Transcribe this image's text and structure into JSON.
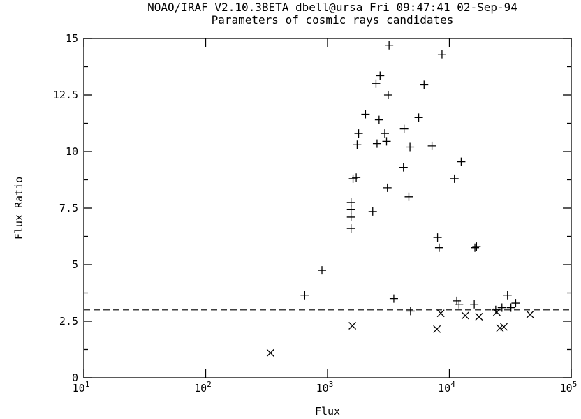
{
  "header": {
    "line1": "NOAO/IRAF V2.10.3BETA dbell@ursa Fri 09:47:41 02-Sep-94",
    "line2": "Parameters of cosmic rays candidates"
  },
  "chart_data": {
    "type": "scatter",
    "xlabel": "Flux",
    "ylabel": "Flux Ratio",
    "xscale": "log",
    "xlim": [
      10,
      100000
    ],
    "ylim": [
      0,
      15
    ],
    "x_ticks": [
      {
        "value": 10,
        "base": "10",
        "exp": "1"
      },
      {
        "value": 100,
        "base": "10",
        "exp": "2"
      },
      {
        "value": 1000,
        "base": "10",
        "exp": "3"
      },
      {
        "value": 10000,
        "base": "10",
        "exp": "4"
      },
      {
        "value": 100000,
        "base": "10",
        "exp": "5"
      }
    ],
    "y_ticks": [
      {
        "value": 0,
        "label": "0"
      },
      {
        "value": 2.5,
        "label": "2.5"
      },
      {
        "value": 5,
        "label": "5"
      },
      {
        "value": 7.5,
        "label": "7.5"
      },
      {
        "value": 10,
        "label": "10"
      },
      {
        "value": 12.5,
        "label": "12.5"
      },
      {
        "value": 15,
        "label": "15"
      }
    ],
    "threshold": 3.0,
    "series": [
      {
        "marker": "plus",
        "points": [
          [
            650,
            3.65
          ],
          [
            900,
            4.75
          ],
          [
            1560,
            6.6
          ],
          [
            1560,
            7.1
          ],
          [
            1560,
            7.45
          ],
          [
            1560,
            7.75
          ],
          [
            1620,
            8.8
          ],
          [
            1720,
            8.85
          ],
          [
            1750,
            10.3
          ],
          [
            1800,
            10.8
          ],
          [
            2050,
            11.65
          ],
          [
            2350,
            7.35
          ],
          [
            2500,
            13.0
          ],
          [
            2550,
            10.35
          ],
          [
            2650,
            11.4
          ],
          [
            2700,
            13.35
          ],
          [
            2950,
            10.8
          ],
          [
            3050,
            10.45
          ],
          [
            3100,
            8.4
          ],
          [
            3150,
            12.5
          ],
          [
            3200,
            14.7
          ],
          [
            3500,
            3.5
          ],
          [
            4200,
            9.3
          ],
          [
            4250,
            11.0
          ],
          [
            4650,
            8.0
          ],
          [
            4750,
            10.2
          ],
          [
            4800,
            2.95
          ],
          [
            5600,
            11.5
          ],
          [
            6200,
            12.95
          ],
          [
            7200,
            10.25
          ],
          [
            8000,
            6.2
          ],
          [
            8250,
            5.75
          ],
          [
            8700,
            14.3
          ],
          [
            11000,
            8.8
          ],
          [
            11500,
            3.4
          ],
          [
            12000,
            3.25
          ],
          [
            12500,
            9.55
          ],
          [
            16000,
            3.25
          ],
          [
            16200,
            5.75
          ],
          [
            16700,
            5.8
          ],
          [
            24000,
            3.0
          ],
          [
            27000,
            3.1
          ],
          [
            30000,
            3.65
          ],
          [
            32000,
            3.1
          ],
          [
            35000,
            3.3
          ]
        ]
      },
      {
        "marker": "cross",
        "points": [
          [
            340,
            1.1
          ],
          [
            1600,
            2.3
          ],
          [
            7900,
            2.15
          ],
          [
            8500,
            2.85
          ],
          [
            13500,
            2.75
          ],
          [
            17500,
            2.7
          ],
          [
            24500,
            2.9
          ],
          [
            26000,
            2.2
          ],
          [
            28000,
            2.25
          ],
          [
            46000,
            2.8
          ]
        ]
      }
    ]
  }
}
